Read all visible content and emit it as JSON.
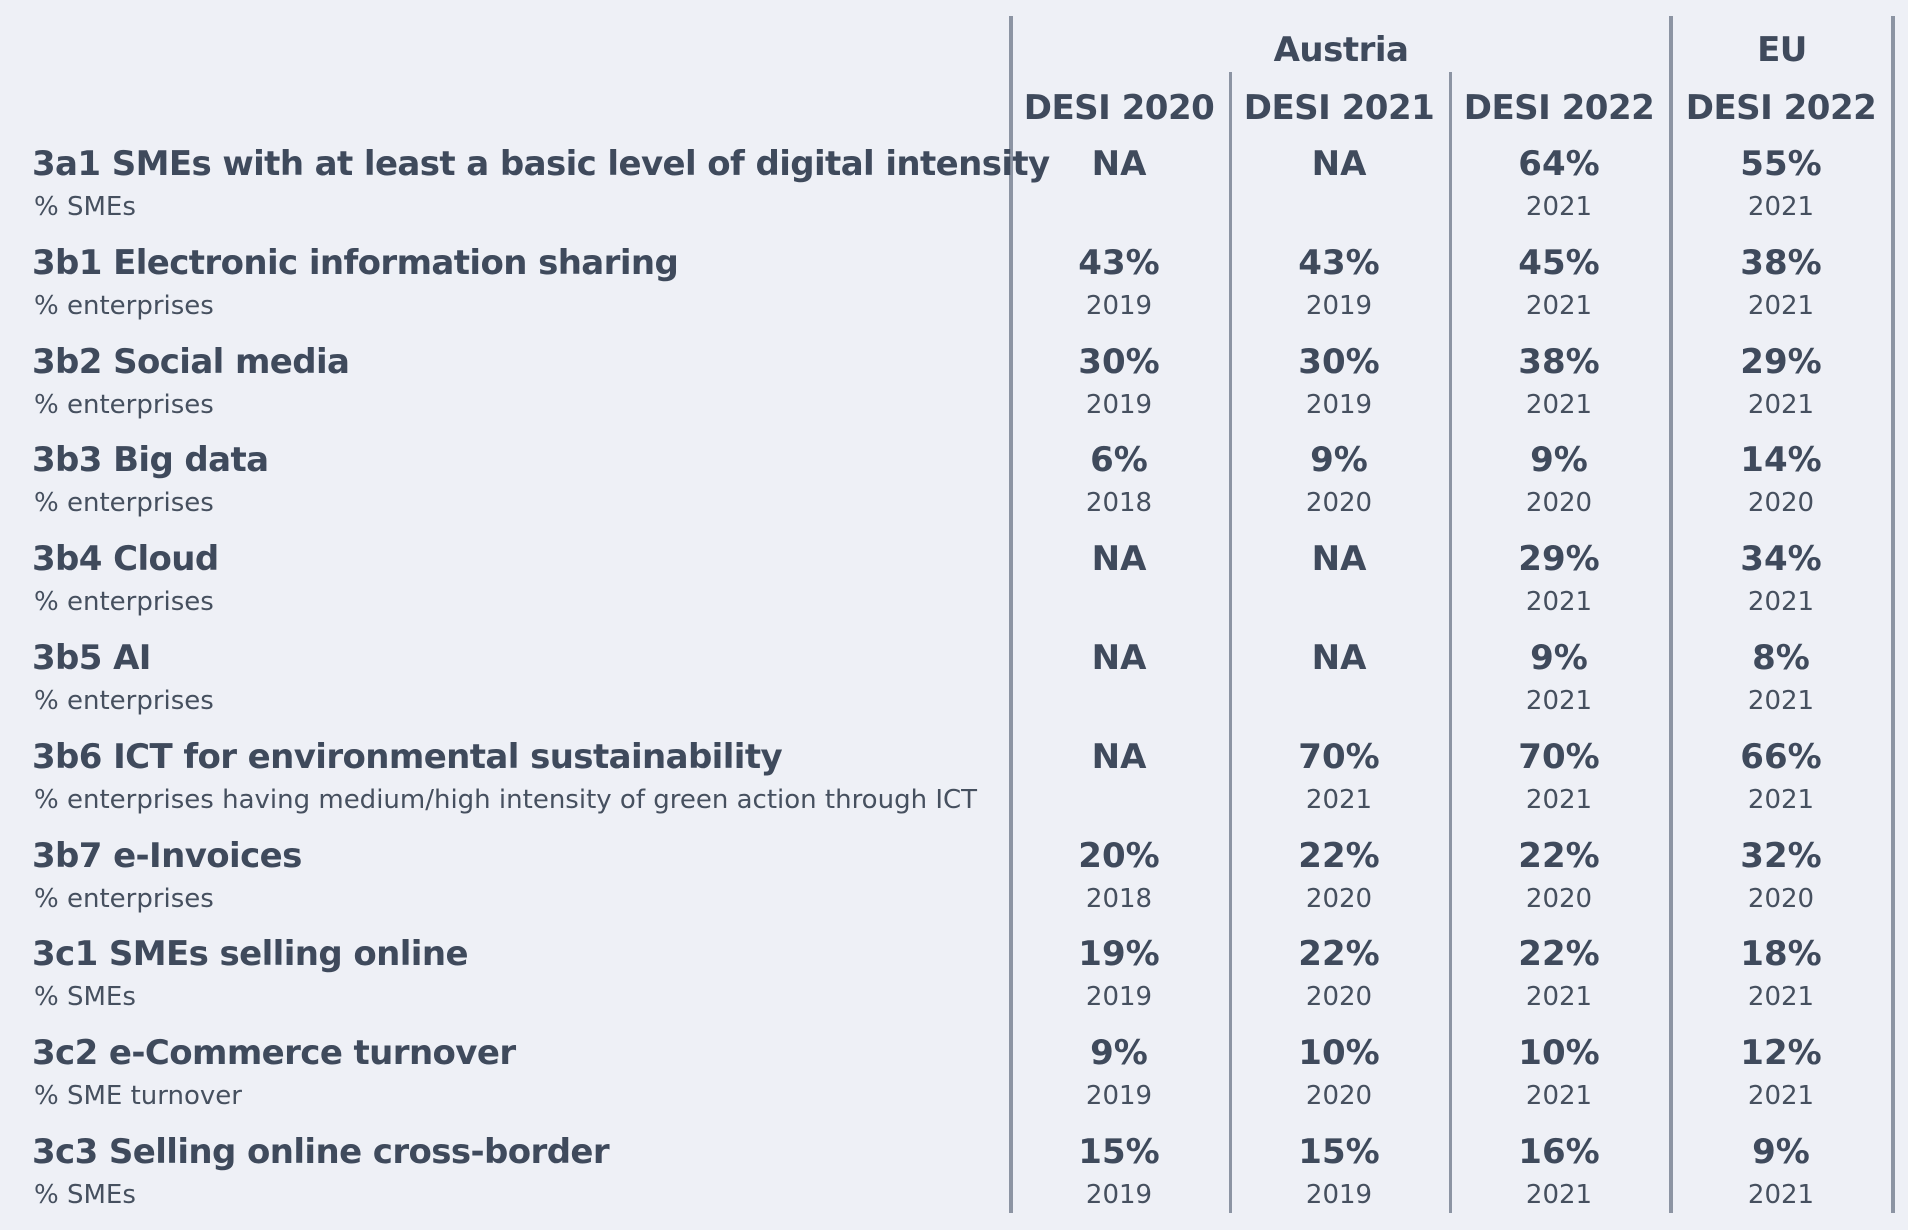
{
  "chart_data": {
    "type": "table",
    "group_headers": {
      "austria": "Austria",
      "eu": "EU"
    },
    "columns": [
      "DESI 2020",
      "DESI 2021",
      "DESI 2022",
      "DESI 2022"
    ],
    "rows": [
      {
        "label": "3a1 SMEs with at least a basic level of digital intensity",
        "unit": "% SMEs",
        "cells": [
          {
            "value": "NA",
            "year": ""
          },
          {
            "value": "NA",
            "year": ""
          },
          {
            "value": "64%",
            "year": "2021"
          },
          {
            "value": "55%",
            "year": "2021"
          }
        ]
      },
      {
        "label": "3b1 Electronic information sharing",
        "unit": "% enterprises",
        "cells": [
          {
            "value": "43%",
            "year": "2019"
          },
          {
            "value": "43%",
            "year": "2019"
          },
          {
            "value": "45%",
            "year": "2021"
          },
          {
            "value": "38%",
            "year": "2021"
          }
        ]
      },
      {
        "label": "3b2 Social media",
        "unit": "% enterprises",
        "cells": [
          {
            "value": "30%",
            "year": "2019"
          },
          {
            "value": "30%",
            "year": "2019"
          },
          {
            "value": "38%",
            "year": "2021"
          },
          {
            "value": "29%",
            "year": "2021"
          }
        ]
      },
      {
        "label": "3b3 Big data",
        "unit": "% enterprises",
        "cells": [
          {
            "value": "6%",
            "year": "2018"
          },
          {
            "value": "9%",
            "year": "2020"
          },
          {
            "value": "9%",
            "year": "2020"
          },
          {
            "value": "14%",
            "year": "2020"
          }
        ]
      },
      {
        "label": "3b4 Cloud",
        "unit": "% enterprises",
        "cells": [
          {
            "value": "NA",
            "year": ""
          },
          {
            "value": "NA",
            "year": ""
          },
          {
            "value": "29%",
            "year": "2021"
          },
          {
            "value": "34%",
            "year": "2021"
          }
        ]
      },
      {
        "label": "3b5 AI",
        "unit": "% enterprises",
        "cells": [
          {
            "value": "NA",
            "year": ""
          },
          {
            "value": "NA",
            "year": ""
          },
          {
            "value": "9%",
            "year": "2021"
          },
          {
            "value": "8%",
            "year": "2021"
          }
        ]
      },
      {
        "label": "3b6 ICT for environmental sustainability",
        "unit": "% enterprises having medium/high intensity of green action through ICT",
        "cells": [
          {
            "value": "NA",
            "year": ""
          },
          {
            "value": "70%",
            "year": "2021"
          },
          {
            "value": "70%",
            "year": "2021"
          },
          {
            "value": "66%",
            "year": "2021"
          }
        ]
      },
      {
        "label": "3b7 e-Invoices",
        "unit": "% enterprises",
        "cells": [
          {
            "value": "20%",
            "year": "2018"
          },
          {
            "value": "22%",
            "year": "2020"
          },
          {
            "value": "22%",
            "year": "2020"
          },
          {
            "value": "32%",
            "year": "2020"
          }
        ]
      },
      {
        "label": "3c1 SMEs selling online",
        "unit": "% SMEs",
        "cells": [
          {
            "value": "19%",
            "year": "2019"
          },
          {
            "value": "22%",
            "year": "2020"
          },
          {
            "value": "22%",
            "year": "2021"
          },
          {
            "value": "18%",
            "year": "2021"
          }
        ]
      },
      {
        "label": "3c2 e-Commerce turnover",
        "unit": "% SME turnover",
        "cells": [
          {
            "value": "9%",
            "year": "2019"
          },
          {
            "value": "10%",
            "year": "2020"
          },
          {
            "value": "10%",
            "year": "2021"
          },
          {
            "value": "12%",
            "year": "2021"
          }
        ]
      },
      {
        "label": "3c3 Selling online cross-border",
        "unit": "% SMEs",
        "cells": [
          {
            "value": "15%",
            "year": "2019"
          },
          {
            "value": "15%",
            "year": "2019"
          },
          {
            "value": "16%",
            "year": "2021"
          },
          {
            "value": "9%",
            "year": "2021"
          }
        ]
      }
    ]
  }
}
